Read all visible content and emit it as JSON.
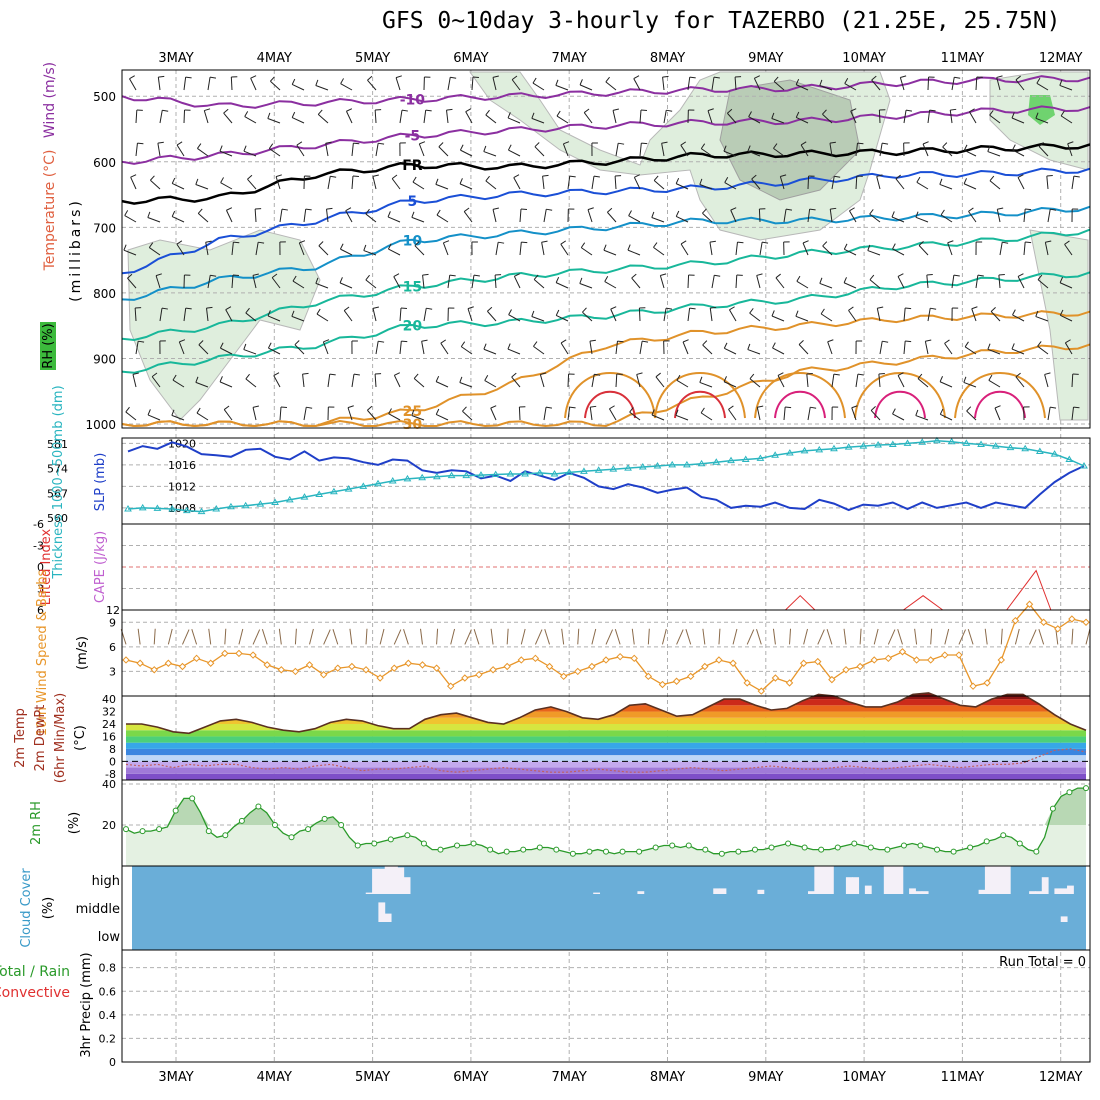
{
  "title": "GFS 0~10day 3-hourly for TAZERBO (21.25E, 25.75N)",
  "colors": {
    "temp_cold": "#8b2fa0",
    "temp_freeze": "#000000",
    "temp_blue": "#1a4fd6",
    "temp_cyan": "#1490c8",
    "temp_teal": "#18b79a",
    "temp_orange": "#e0922a",
    "temp_red": "#d8303a",
    "temp_magenta": "#d8207a",
    "slp": "#1f3fc8",
    "thickness": "#2ab5c0",
    "lifted_index": "#e03030",
    "wind10m": "#e8962a",
    "rh2m": "#2a9a2a",
    "cloud": "#6aaed8",
    "cloud_clear": "#f4f0f8",
    "grid": "#b0b0b0"
  },
  "chart_data": [
    {
      "type": "line",
      "panel": "upper_air",
      "ylabel_parts": [
        "Wind (m/s)",
        "Temperature (°C)",
        "RH (%)",
        "(millibars)"
      ],
      "x_days": [
        "3MAY",
        "4MAY",
        "5MAY",
        "6MAY",
        "7MAY",
        "8MAY",
        "9MAY",
        "10MAY",
        "11MAY",
        "12MAY"
      ],
      "y_ticks": [
        500,
        600,
        700,
        800,
        900,
        1000
      ],
      "ylim": [
        1000,
        460
      ],
      "contours": [
        {
          "label": "-10",
          "level_mb": [
            500,
            515,
            510,
            505,
            500,
            495,
            490,
            488,
            480,
            475,
            473
          ]
        },
        {
          "label": "-5",
          "level_mb": [
            600,
            590,
            575,
            560,
            552,
            545,
            540,
            538,
            530,
            522,
            518
          ]
        },
        {
          "label": "FR",
          "level_mb": [
            660,
            655,
            620,
            605,
            608,
            600,
            590,
            588,
            585,
            580,
            575
          ]
        },
        {
          "label": "5",
          "level_mb": [
            770,
            720,
            690,
            660,
            650,
            645,
            640,
            630,
            620,
            618,
            612
          ]
        },
        {
          "label": "10",
          "level_mb": [
            810,
            780,
            760,
            720,
            710,
            700,
            690,
            690,
            685,
            680,
            670
          ]
        },
        {
          "label": "15",
          "level_mb": [
            870,
            850,
            815,
            790,
            775,
            765,
            755,
            740,
            730,
            720,
            705
          ]
        },
        {
          "label": "20",
          "level_mb": [
            920,
            900,
            880,
            850,
            845,
            835,
            820,
            810,
            790,
            780,
            770
          ]
        },
        {
          "label": "25",
          "level_mb": [
            1000,
            1000,
            1000,
            980,
            940,
            880,
            860,
            850,
            840,
            835,
            830
          ]
        },
        {
          "label": "30",
          "level_mb": [
            1000,
            1000,
            1000,
            1000,
            1000,
            1000,
            960,
            920,
            905,
            890,
            880
          ]
        }
      ],
      "contour_labels_visible": [
        "-10",
        "-5",
        "FR",
        "5",
        "10",
        "15",
        "20",
        "25",
        "30",
        "-10",
        "10",
        "15",
        "20",
        "-5",
        "FR",
        "5",
        "10",
        "20",
        "30"
      ]
    },
    {
      "type": "line",
      "panel": "slp_thickness",
      "ylabel": "SLP (mb)",
      "y2label": "Thickness 1000~500mb (dm)",
      "y_ticks_slp": [
        1008,
        1012,
        1016,
        1020
      ],
      "y_ticks_thickness": [
        560,
        567,
        574,
        581
      ],
      "ylim_slp": [
        1005,
        1021
      ],
      "series": [
        {
          "name": "SLP",
          "values": [
            1018.5,
            1019.5,
            1019.0,
            1020.2,
            1019.4,
            1018.0,
            1017.8,
            1017.5,
            1018.8,
            1019.0,
            1017.5,
            1017.0,
            1018.5,
            1016.8,
            1017.4,
            1017.2,
            1016.5,
            1016.0,
            1017.0,
            1016.8,
            1015.0,
            1014.5,
            1015.0,
            1014.8,
            1013.5,
            1014.0,
            1013.0,
            1014.8,
            1014.0,
            1013.2,
            1014.5,
            1013.6,
            1012.0,
            1011.5,
            1012.4,
            1011.8,
            1010.8,
            1011.4,
            1011.8,
            1010.0,
            1009.5,
            1008.0,
            1008.4,
            1008.2,
            1009.0,
            1008.0,
            1007.8,
            1009.5,
            1008.8,
            1007.6,
            1008.6,
            1008.4,
            1009.0,
            1007.8,
            1009.0,
            1008.0,
            1008.5,
            1009.0,
            1008.0,
            1009.0,
            1008.5,
            1008.0,
            1010.5,
            1012.8,
            1014.5,
            1015.8
          ]
        },
        {
          "name": "Thickness",
          "values": [
            1007.8,
            1008.0,
            1007.9,
            1007.8,
            1007.5,
            1007.3,
            1007.8,
            1008.2,
            1008.4,
            1008.7,
            1009.0,
            1009.5,
            1010.0,
            1010.5,
            1011.0,
            1011.5,
            1012.0,
            1012.5,
            1013.0,
            1013.4,
            1013.6,
            1013.8,
            1014.0,
            1014.0,
            1014.1,
            1014.2,
            1014.3,
            1014.3,
            1014.5,
            1014.3,
            1014.6,
            1014.8,
            1015.0,
            1015.2,
            1015.4,
            1015.6,
            1015.8,
            1016.0,
            1016.0,
            1016.2,
            1016.5,
            1016.8,
            1017.0,
            1017.2,
            1017.8,
            1018.2,
            1018.6,
            1018.8,
            1019.0,
            1019.3,
            1019.5,
            1019.7,
            1019.8,
            1020.0,
            1020.2,
            1020.5,
            1020.3,
            1020.0,
            1019.8,
            1019.5,
            1019.2,
            1019.0,
            1018.5,
            1018.0,
            1017.0,
            1015.8
          ]
        }
      ]
    },
    {
      "type": "line",
      "panel": "lifted_index_cape",
      "ylabel": "Lifted Index",
      "y2label": "CAPE (J/kg)",
      "y_ticks": [
        -6,
        -3,
        0,
        3,
        6
      ],
      "y2_ticks": [
        12
      ],
      "ylim": [
        -6,
        6
      ],
      "zero_line": 0,
      "series": [
        {
          "name": "Lifted Index",
          "points": [
            [
              6.2,
              6
            ],
            [
              6.35,
              4.0
            ],
            [
              6.5,
              6
            ],
            [
              7.4,
              6
            ],
            [
              7.6,
              4.0
            ],
            [
              7.8,
              6
            ],
            [
              8.45,
              6
            ],
            [
              8.75,
              0.5
            ],
            [
              8.9,
              6
            ]
          ]
        }
      ]
    },
    {
      "type": "line",
      "panel": "wind10m",
      "ylabel": "10m Wind Speed & Barbs",
      "yunit": "(m/s)",
      "y_ticks": [
        3,
        6,
        9
      ],
      "ylim": [
        0,
        10.5
      ],
      "series": [
        {
          "name": "10m Wind Speed",
          "values": [
            4.4,
            4.0,
            3.2,
            4.0,
            3.6,
            4.6,
            4.0,
            5.2,
            5.2,
            5.0,
            3.8,
            3.2,
            3.0,
            3.8,
            2.6,
            3.4,
            3.6,
            3.2,
            2.2,
            3.4,
            4.0,
            3.8,
            3.4,
            1.2,
            2.2,
            2.6,
            3.2,
            3.6,
            4.4,
            4.6,
            3.6,
            2.4,
            3.0,
            3.6,
            4.4,
            4.8,
            4.6,
            2.4,
            1.4,
            1.8,
            2.4,
            3.6,
            4.4,
            4.0,
            1.6,
            0.6,
            2.2,
            1.6,
            4.0,
            4.2,
            2.0,
            3.2,
            3.6,
            4.4,
            4.6,
            5.4,
            4.4,
            4.4,
            5.0,
            5.0,
            1.2,
            1.6,
            4.4,
            9.2,
            11.2,
            9.0,
            8.2,
            9.4,
            9.0
          ]
        }
      ]
    },
    {
      "type": "area",
      "panel": "temp2m",
      "ylabel": "2m Temp 2m DewPt (6hr Min/Max)",
      "yunit": "(°C)",
      "y_ticks": [
        -8,
        0,
        8,
        16,
        24,
        32,
        40
      ],
      "ylim": [
        -12,
        42
      ],
      "series": [
        {
          "name": "2m Temp",
          "values": [
            24,
            24,
            22,
            19,
            18,
            22,
            26,
            27,
            25,
            22,
            20,
            19,
            21,
            25,
            27,
            26,
            23,
            21,
            21,
            27,
            30,
            31,
            28,
            25,
            24,
            28,
            33,
            35,
            32,
            28,
            27,
            30,
            36,
            37,
            33,
            29,
            30,
            35,
            40,
            40,
            36,
            33,
            34,
            39,
            43,
            42,
            38,
            35,
            35,
            38,
            43,
            44,
            40,
            36,
            35,
            40,
            43,
            43,
            37,
            30,
            24,
            20
          ]
        },
        {
          "name": "2m DewPt",
          "values": [
            -2,
            -3,
            -2,
            -4,
            -2,
            -3,
            -2,
            -2,
            -4,
            -5,
            -4,
            -5,
            -3,
            -2,
            -4,
            -6,
            -5,
            -5,
            -4,
            -3,
            -6,
            -7,
            -6,
            -5,
            -4,
            -5,
            -6,
            -7,
            -7,
            -6,
            -5,
            -6,
            -7,
            -7,
            -6,
            -5,
            -4,
            -5,
            -6,
            -5,
            -4,
            -3,
            -4,
            -5,
            -5,
            -4,
            -3,
            -4,
            -5,
            -4,
            -3,
            -2,
            -3,
            -4,
            -3,
            -2,
            -2,
            -1,
            3,
            7,
            8,
            6
          ]
        }
      ]
    },
    {
      "type": "area",
      "panel": "rh2m",
      "ylabel": "2m RH",
      "yunit": "(%)",
      "y_ticks": [
        20,
        40
      ],
      "ylim": [
        0,
        40
      ],
      "series": [
        {
          "name": "2m RH",
          "values": [
            18,
            16,
            17,
            17,
            18,
            19,
            27,
            33,
            33,
            26,
            17,
            14,
            15,
            19,
            22,
            26,
            29,
            26,
            20,
            16,
            14,
            17,
            18,
            21,
            23,
            24,
            20,
            14,
            10,
            11,
            11,
            12,
            13,
            14,
            15,
            14,
            11,
            8,
            8,
            9,
            10,
            10,
            11,
            10,
            8,
            6,
            7,
            7,
            8,
            8,
            9,
            9,
            8,
            7,
            6,
            6,
            7,
            8,
            7,
            6,
            7,
            7,
            7,
            8,
            9,
            10,
            10,
            9,
            10,
            8,
            8,
            6,
            6,
            7,
            7,
            7,
            8,
            8,
            9,
            10,
            11,
            10,
            9,
            8,
            8,
            8,
            9,
            10,
            11,
            10,
            9,
            8,
            8,
            9,
            10,
            11,
            10,
            9,
            8,
            7,
            7,
            8,
            9,
            10,
            12,
            13,
            15,
            14,
            11,
            8,
            7,
            14,
            28,
            34,
            36,
            38,
            38
          ]
        }
      ]
    },
    {
      "type": "heatmap",
      "panel": "cloud_cover",
      "ylabel": "Cloud Cover",
      "yunit": "(%)",
      "rows": [
        "high",
        "middle",
        "low"
      ],
      "high": [
        0,
        0,
        0,
        0,
        0,
        0,
        0,
        0,
        0,
        0,
        0,
        0,
        0,
        0,
        0,
        0,
        0,
        0,
        0,
        0,
        0,
        0,
        0,
        0,
        0,
        0,
        0,
        0,
        0,
        0,
        0,
        0,
        0,
        0,
        0,
        0,
        0,
        5,
        90,
        90,
        100,
        100,
        95,
        60,
        0,
        0,
        0,
        0,
        0,
        0,
        0,
        0,
        0,
        0,
        0,
        0,
        0,
        0,
        0,
        0,
        0,
        0,
        0,
        0,
        0,
        0,
        0,
        0,
        0,
        0,
        0,
        0,
        0,
        5,
        0,
        0,
        0,
        0,
        0,
        0,
        10,
        0,
        0,
        0,
        0,
        0,
        0,
        0,
        0,
        0,
        0,
        0,
        20,
        20,
        0,
        0,
        0,
        0,
        0,
        15,
        0,
        0,
        0,
        0,
        0,
        0,
        0,
        10,
        100,
        100,
        100,
        0,
        0,
        60,
        60,
        0,
        30,
        0,
        0,
        100,
        100,
        100,
        0,
        20,
        10,
        10,
        0,
        0,
        0,
        0,
        0,
        0,
        0,
        0,
        15,
        100,
        100,
        100,
        100,
        0,
        0,
        0,
        10,
        10,
        60,
        0,
        20,
        20,
        30,
        0,
        0
      ],
      "middle": [
        0,
        0,
        0,
        0,
        0,
        0,
        0,
        0,
        0,
        0,
        0,
        0,
        0,
        0,
        0,
        0,
        0,
        0,
        0,
        0,
        0,
        0,
        0,
        0,
        0,
        0,
        0,
        0,
        0,
        0,
        0,
        0,
        0,
        0,
        0,
        0,
        0,
        0,
        0,
        70,
        30,
        0,
        0,
        0,
        0,
        0,
        0,
        0,
        0,
        0,
        0,
        0,
        0,
        0,
        0,
        0,
        0,
        0,
        0,
        0,
        0,
        0,
        0,
        0,
        0,
        0,
        0,
        0,
        0,
        0,
        0,
        0,
        0,
        0,
        0,
        0,
        0,
        0,
        0,
        0,
        0,
        0,
        0,
        0,
        0,
        0,
        0,
        0,
        0,
        0,
        0,
        0,
        0,
        0,
        0,
        0,
        0,
        0,
        0,
        0,
        0,
        0,
        0,
        0,
        0,
        0,
        0,
        0,
        0,
        0,
        0,
        0,
        0,
        0,
        0,
        0,
        0,
        0,
        0,
        0,
        0,
        0,
        0,
        0,
        0,
        0,
        0,
        0,
        0,
        0,
        0,
        0,
        0,
        0,
        0,
        0,
        0,
        0,
        0,
        0,
        0,
        0,
        0,
        0,
        0,
        0,
        0,
        20,
        0,
        0,
        0,
        0,
        0
      ],
      "low": []
    },
    {
      "type": "bar",
      "panel": "precip",
      "ylabel": "3hr Precip (mm)",
      "legend_parts": [
        "Total / Rain",
        "Convective"
      ],
      "y_ticks": [
        0,
        0.2,
        0.4,
        0.6,
        0.8
      ],
      "ylim": [
        0,
        0.95
      ],
      "run_total_text": "Run Total = 0",
      "values": []
    }
  ]
}
